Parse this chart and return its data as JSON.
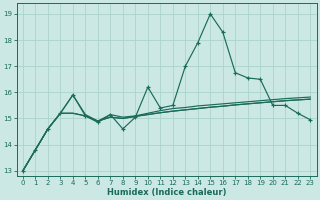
{
  "xlabel": "Humidex (Indice chaleur)",
  "bg_color": "#cce8e4",
  "grid_color": "#aad4cc",
  "line_color": "#1a6b5a",
  "xlim": [
    -0.5,
    23.5
  ],
  "ylim": [
    12.8,
    19.4
  ],
  "xticks": [
    0,
    1,
    2,
    3,
    4,
    5,
    6,
    7,
    8,
    9,
    10,
    11,
    12,
    13,
    14,
    15,
    16,
    17,
    18,
    19,
    20,
    21,
    22,
    23
  ],
  "yticks": [
    13,
    14,
    15,
    16,
    17,
    18,
    19
  ],
  "line_jagged_y": [
    13.0,
    13.8,
    14.6,
    15.2,
    15.9,
    15.1,
    14.85,
    15.15,
    14.6,
    15.05,
    16.2,
    15.4,
    15.5,
    17.0,
    17.9,
    19.0,
    18.3,
    16.75,
    16.55,
    16.5,
    15.5,
    15.5,
    15.2,
    14.95
  ],
  "line_flat1_y": [
    13.0,
    13.8,
    14.6,
    15.2,
    15.9,
    15.15,
    14.9,
    15.15,
    15.05,
    15.1,
    15.2,
    15.3,
    15.38,
    15.42,
    15.48,
    15.52,
    15.56,
    15.6,
    15.64,
    15.68,
    15.72,
    15.76,
    15.79,
    15.82
  ],
  "line_flat2_y": [
    13.0,
    13.8,
    14.6,
    15.2,
    15.2,
    15.1,
    14.9,
    15.05,
    15.0,
    15.08,
    15.15,
    15.22,
    15.28,
    15.33,
    15.38,
    15.43,
    15.47,
    15.52,
    15.56,
    15.6,
    15.64,
    15.68,
    15.71,
    15.74
  ],
  "line_flat3_y": [
    13.0,
    13.8,
    14.6,
    15.2,
    15.2,
    15.1,
    14.9,
    15.05,
    15.0,
    15.08,
    15.15,
    15.22,
    15.28,
    15.33,
    15.38,
    15.43,
    15.47,
    15.52,
    15.56,
    15.6,
    15.64,
    15.68,
    15.71,
    15.74
  ]
}
